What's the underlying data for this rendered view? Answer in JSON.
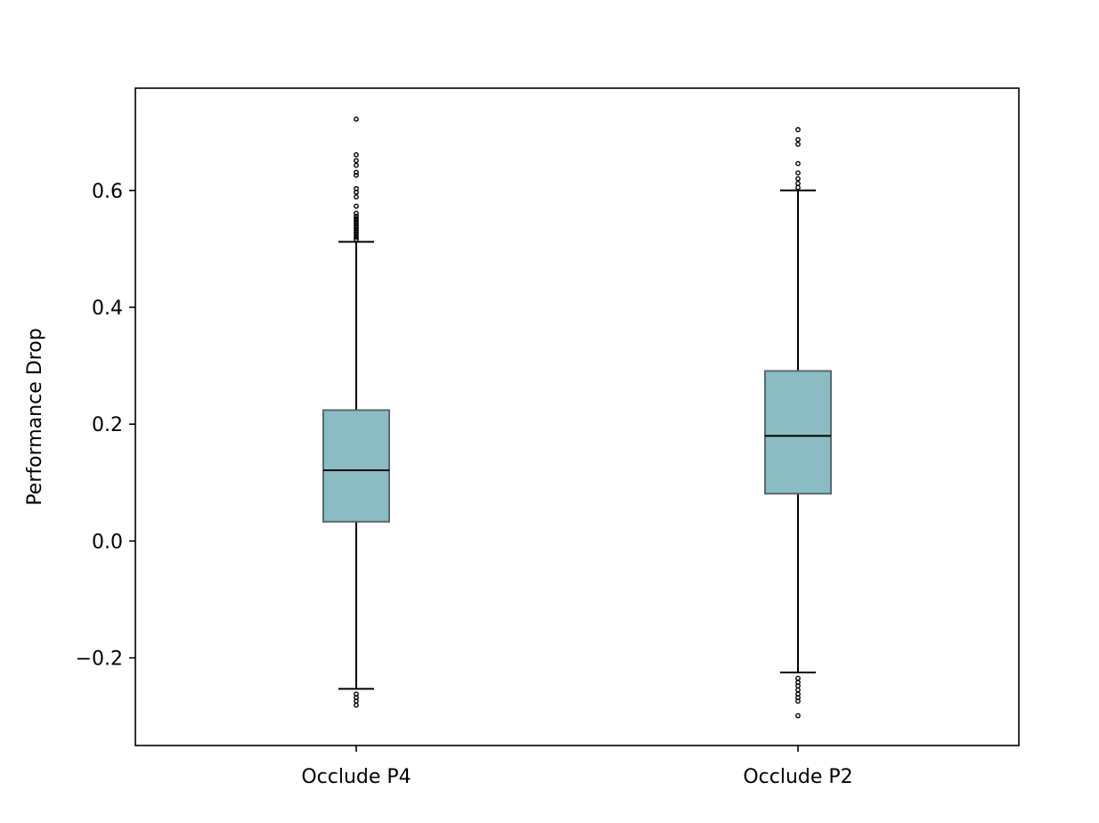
{
  "chart_data": {
    "type": "box",
    "title": "",
    "xlabel": "",
    "ylabel": "Performance Drop",
    "ylim": [
      -0.35,
      0.775
    ],
    "yticks": [
      -0.2,
      0.0,
      0.2,
      0.4,
      0.6
    ],
    "ytick_labels": [
      "−0.2",
      "0.0",
      "0.2",
      "0.4",
      "0.6"
    ],
    "categories": [
      "Occlude P4",
      "Occlude P2"
    ],
    "grid": false,
    "colors": {
      "box_fill": "#8bbcc4",
      "box_edge": "#5a6a6e",
      "median": "#000000",
      "whisker": "#000000",
      "flier": "#000000"
    },
    "boxes": [
      {
        "label": "Occlude P4",
        "whisker_low": -0.253,
        "q1": 0.033,
        "median": 0.121,
        "q3": 0.224,
        "whisker_high": 0.512,
        "fliers": [
          0.722,
          0.661,
          0.651,
          0.643,
          0.631,
          0.626,
          0.603,
          0.597,
          0.589,
          0.573,
          0.561,
          0.556,
          0.552,
          0.548,
          0.544,
          0.54,
          0.536,
          0.532,
          0.528,
          0.524,
          0.52,
          0.516,
          -0.262,
          -0.268,
          -0.274,
          -0.281
        ]
      },
      {
        "label": "Occlude P2",
        "whisker_low": -0.225,
        "q1": 0.081,
        "median": 0.18,
        "q3": 0.291,
        "whisker_high": 0.6,
        "fliers": [
          0.704,
          0.687,
          0.679,
          0.646,
          0.63,
          0.62,
          0.612,
          0.605,
          -0.235,
          -0.242,
          -0.248,
          -0.255,
          -0.262,
          -0.268,
          -0.274,
          -0.299
        ]
      }
    ]
  }
}
